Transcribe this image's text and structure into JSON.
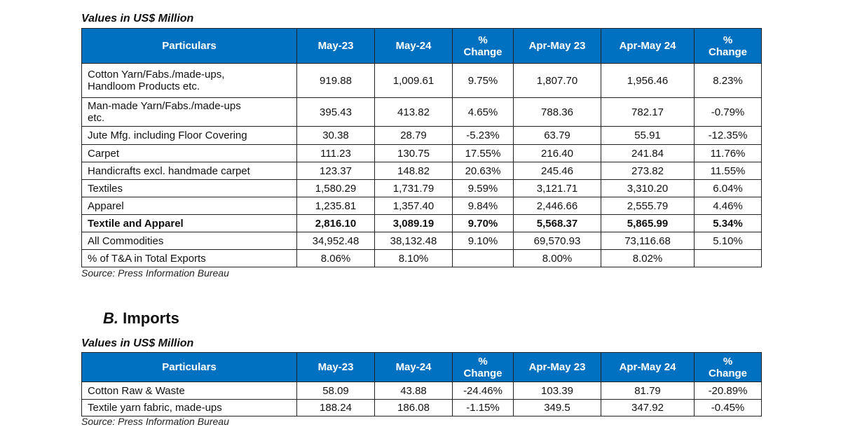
{
  "exports": {
    "caption": "Values in US$ Million",
    "headers": [
      "Particulars",
      "May-23",
      "May-24",
      "%\nChange",
      "Apr-May 23",
      "Apr-May 24",
      "%\nChange"
    ],
    "rows": [
      {
        "cells": [
          "Cotton Yarn/Fabs./made-ups,\nHandloom Products etc.",
          "919.88",
          "1,009.61",
          "9.75%",
          "1,807.70",
          "1,956.46",
          "8.23%"
        ]
      },
      {
        "cells": [
          "Man-made Yarn/Fabs./made-ups\netc.",
          "395.43",
          "413.82",
          "4.65%",
          "788.36",
          "782.17",
          "-0.79%"
        ]
      },
      {
        "cells": [
          "Jute Mfg. including Floor Covering",
          "30.38",
          "28.79",
          "-5.23%",
          "63.79",
          "55.91",
          "-12.35%"
        ]
      },
      {
        "cells": [
          "Carpet",
          "111.23",
          "130.75",
          "17.55%",
          "216.40",
          "241.84",
          "11.76%"
        ]
      },
      {
        "cells": [
          "Handicrafts excl. handmade carpet",
          "123.37",
          "148.82",
          "20.63%",
          "245.46",
          "273.82",
          "11.55%"
        ]
      },
      {
        "cells": [
          "Textiles",
          "1,580.29",
          "1,731.79",
          "9.59%",
          "3,121.71",
          "3,310.20",
          "6.04%"
        ]
      },
      {
        "cells": [
          "Apparel",
          "1,235.81",
          "1,357.40",
          "9.84%",
          "2,446.66",
          "2,555.79",
          "4.46%"
        ]
      },
      {
        "cells": [
          "Textile and Apparel",
          "2,816.10",
          "3,089.19",
          "9.70%",
          "5,568.37",
          "5,865.99",
          "5.34%"
        ],
        "bold": true
      },
      {
        "cells": [
          "All Commodities",
          "34,952.48",
          "38,132.48",
          "9.10%",
          "69,570.93",
          "73,116.68",
          "5.10%"
        ]
      },
      {
        "cells": [
          "% of T&A in Total Exports",
          "8.06%",
          "8.10%",
          "",
          "8.00%",
          "8.02%",
          ""
        ]
      }
    ],
    "source": "Source: Press Information Bureau"
  },
  "imports": {
    "section_letter": "B.",
    "section_title": "Imports",
    "caption": "Values in US$ Million",
    "headers": [
      "Particulars",
      "May-23",
      "May-24",
      "%\nChange",
      "Apr-May 23",
      "Apr-May 24",
      "%\nChange"
    ],
    "rows": [
      {
        "cells": [
          "Cotton Raw & Waste",
          "58.09",
          "43.88",
          "-24.46%",
          "103.39",
          "81.79",
          "-20.89%"
        ]
      },
      {
        "cells": [
          "Textile yarn fabric, made-ups",
          "188.24",
          "186.08",
          "-1.15%",
          "349.5",
          "347.92",
          "-0.45%"
        ]
      }
    ],
    "source": "Source: Press Information Bureau"
  },
  "colors": {
    "header_bg": "#0070C0",
    "header_text": "#FFFFFF"
  }
}
